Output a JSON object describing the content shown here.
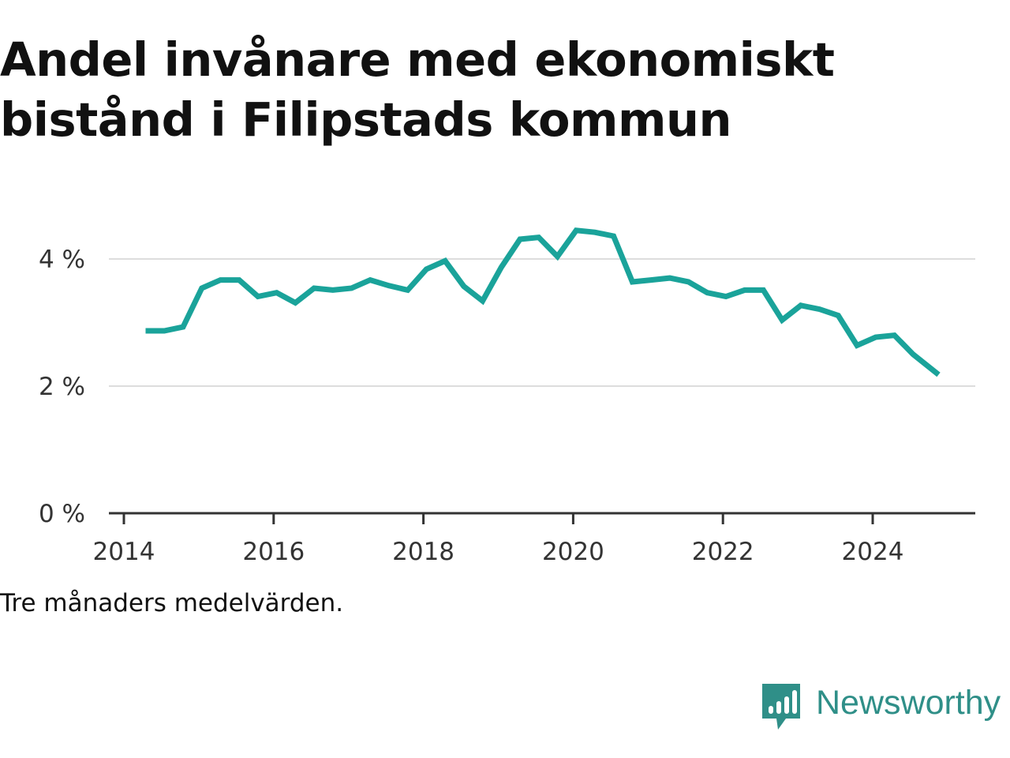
{
  "title_lines": [
    "Andel invånare med ekonomiskt",
    "bistånd i Filipstads kommun"
  ],
  "note": "Tre månaders medelvärden.",
  "brand": {
    "name": "Newsworthy",
    "icon": "newsworthy-logo-icon",
    "color": "#2f8f88"
  },
  "chart_data": {
    "type": "line",
    "title": "Andel invånare med ekonomiskt bistånd i Filipstads kommun",
    "xlabel": "",
    "ylabel": "",
    "x_range": [
      2014,
      2025.4
    ],
    "x_ticks": [
      2014,
      2016,
      2018,
      2020,
      2022,
      2024
    ],
    "x_tick_labels": [
      "2014",
      "2016",
      "2018",
      "2020",
      "2022",
      "2024"
    ],
    "y_range": [
      0,
      4.9
    ],
    "y_ticks": [
      0,
      2,
      4
    ],
    "y_tick_labels": [
      "0 %",
      "2 %",
      "4 %"
    ],
    "grid": true,
    "line_color": "#1aa39a",
    "series": [
      {
        "name": "",
        "x": [
          2014.29,
          2014.54,
          2014.79,
          2015.04,
          2015.29,
          2015.54,
          2015.79,
          2016.04,
          2016.29,
          2016.54,
          2016.79,
          2017.04,
          2017.29,
          2017.54,
          2017.79,
          2018.04,
          2018.29,
          2018.54,
          2018.79,
          2019.04,
          2019.29,
          2019.54,
          2019.79,
          2020.04,
          2020.29,
          2020.54,
          2020.79,
          2021.04,
          2021.29,
          2021.54,
          2021.79,
          2022.04,
          2022.29,
          2022.54,
          2022.79,
          2023.04,
          2023.29,
          2023.54,
          2023.79,
          2024.04,
          2024.29,
          2024.54,
          2024.88
        ],
        "y": [
          2.87,
          2.87,
          2.93,
          3.54,
          3.67,
          3.67,
          3.41,
          3.47,
          3.31,
          3.54,
          3.51,
          3.54,
          3.67,
          3.58,
          3.51,
          3.84,
          3.97,
          3.57,
          3.34,
          3.87,
          4.31,
          4.34,
          4.04,
          4.45,
          4.42,
          4.36,
          3.64,
          3.67,
          3.7,
          3.64,
          3.47,
          3.41,
          3.51,
          3.51,
          3.04,
          3.27,
          3.21,
          3.11,
          2.64,
          2.77,
          2.8,
          2.5,
          2.18
        ]
      }
    ]
  }
}
